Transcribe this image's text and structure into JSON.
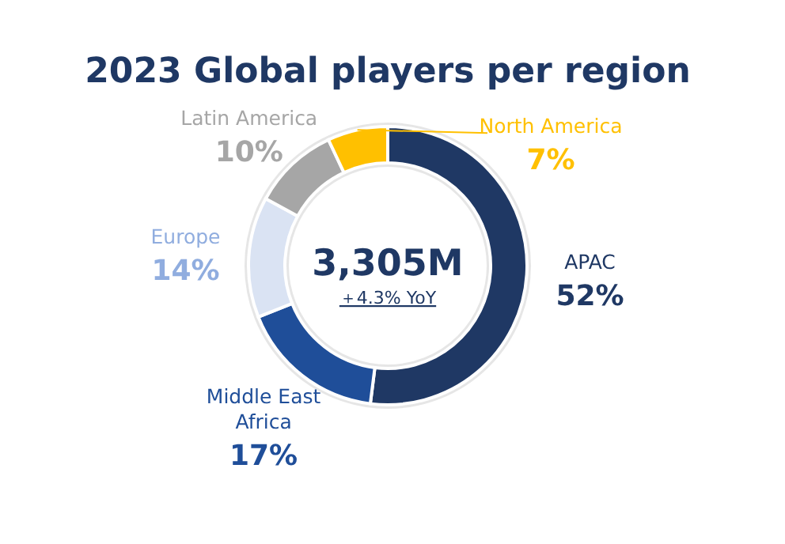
{
  "chart_data": {
    "type": "donut",
    "title": "2023 Global players per region",
    "categories": [
      "APAC",
      "Middle East Africa",
      "Europe",
      "Latin America",
      "North America"
    ],
    "values": [
      52,
      17,
      14,
      10,
      7
    ],
    "colors": [
      "#1f3864",
      "#1f4e99",
      "#dae3f3",
      "#a6a6a6",
      "#ffc000"
    ],
    "value_labels": [
      "52%",
      "17%",
      "14%",
      "10%",
      "7%"
    ],
    "annotations": [
      "3,305M",
      "＋4.3% YoY"
    ]
  }
}
